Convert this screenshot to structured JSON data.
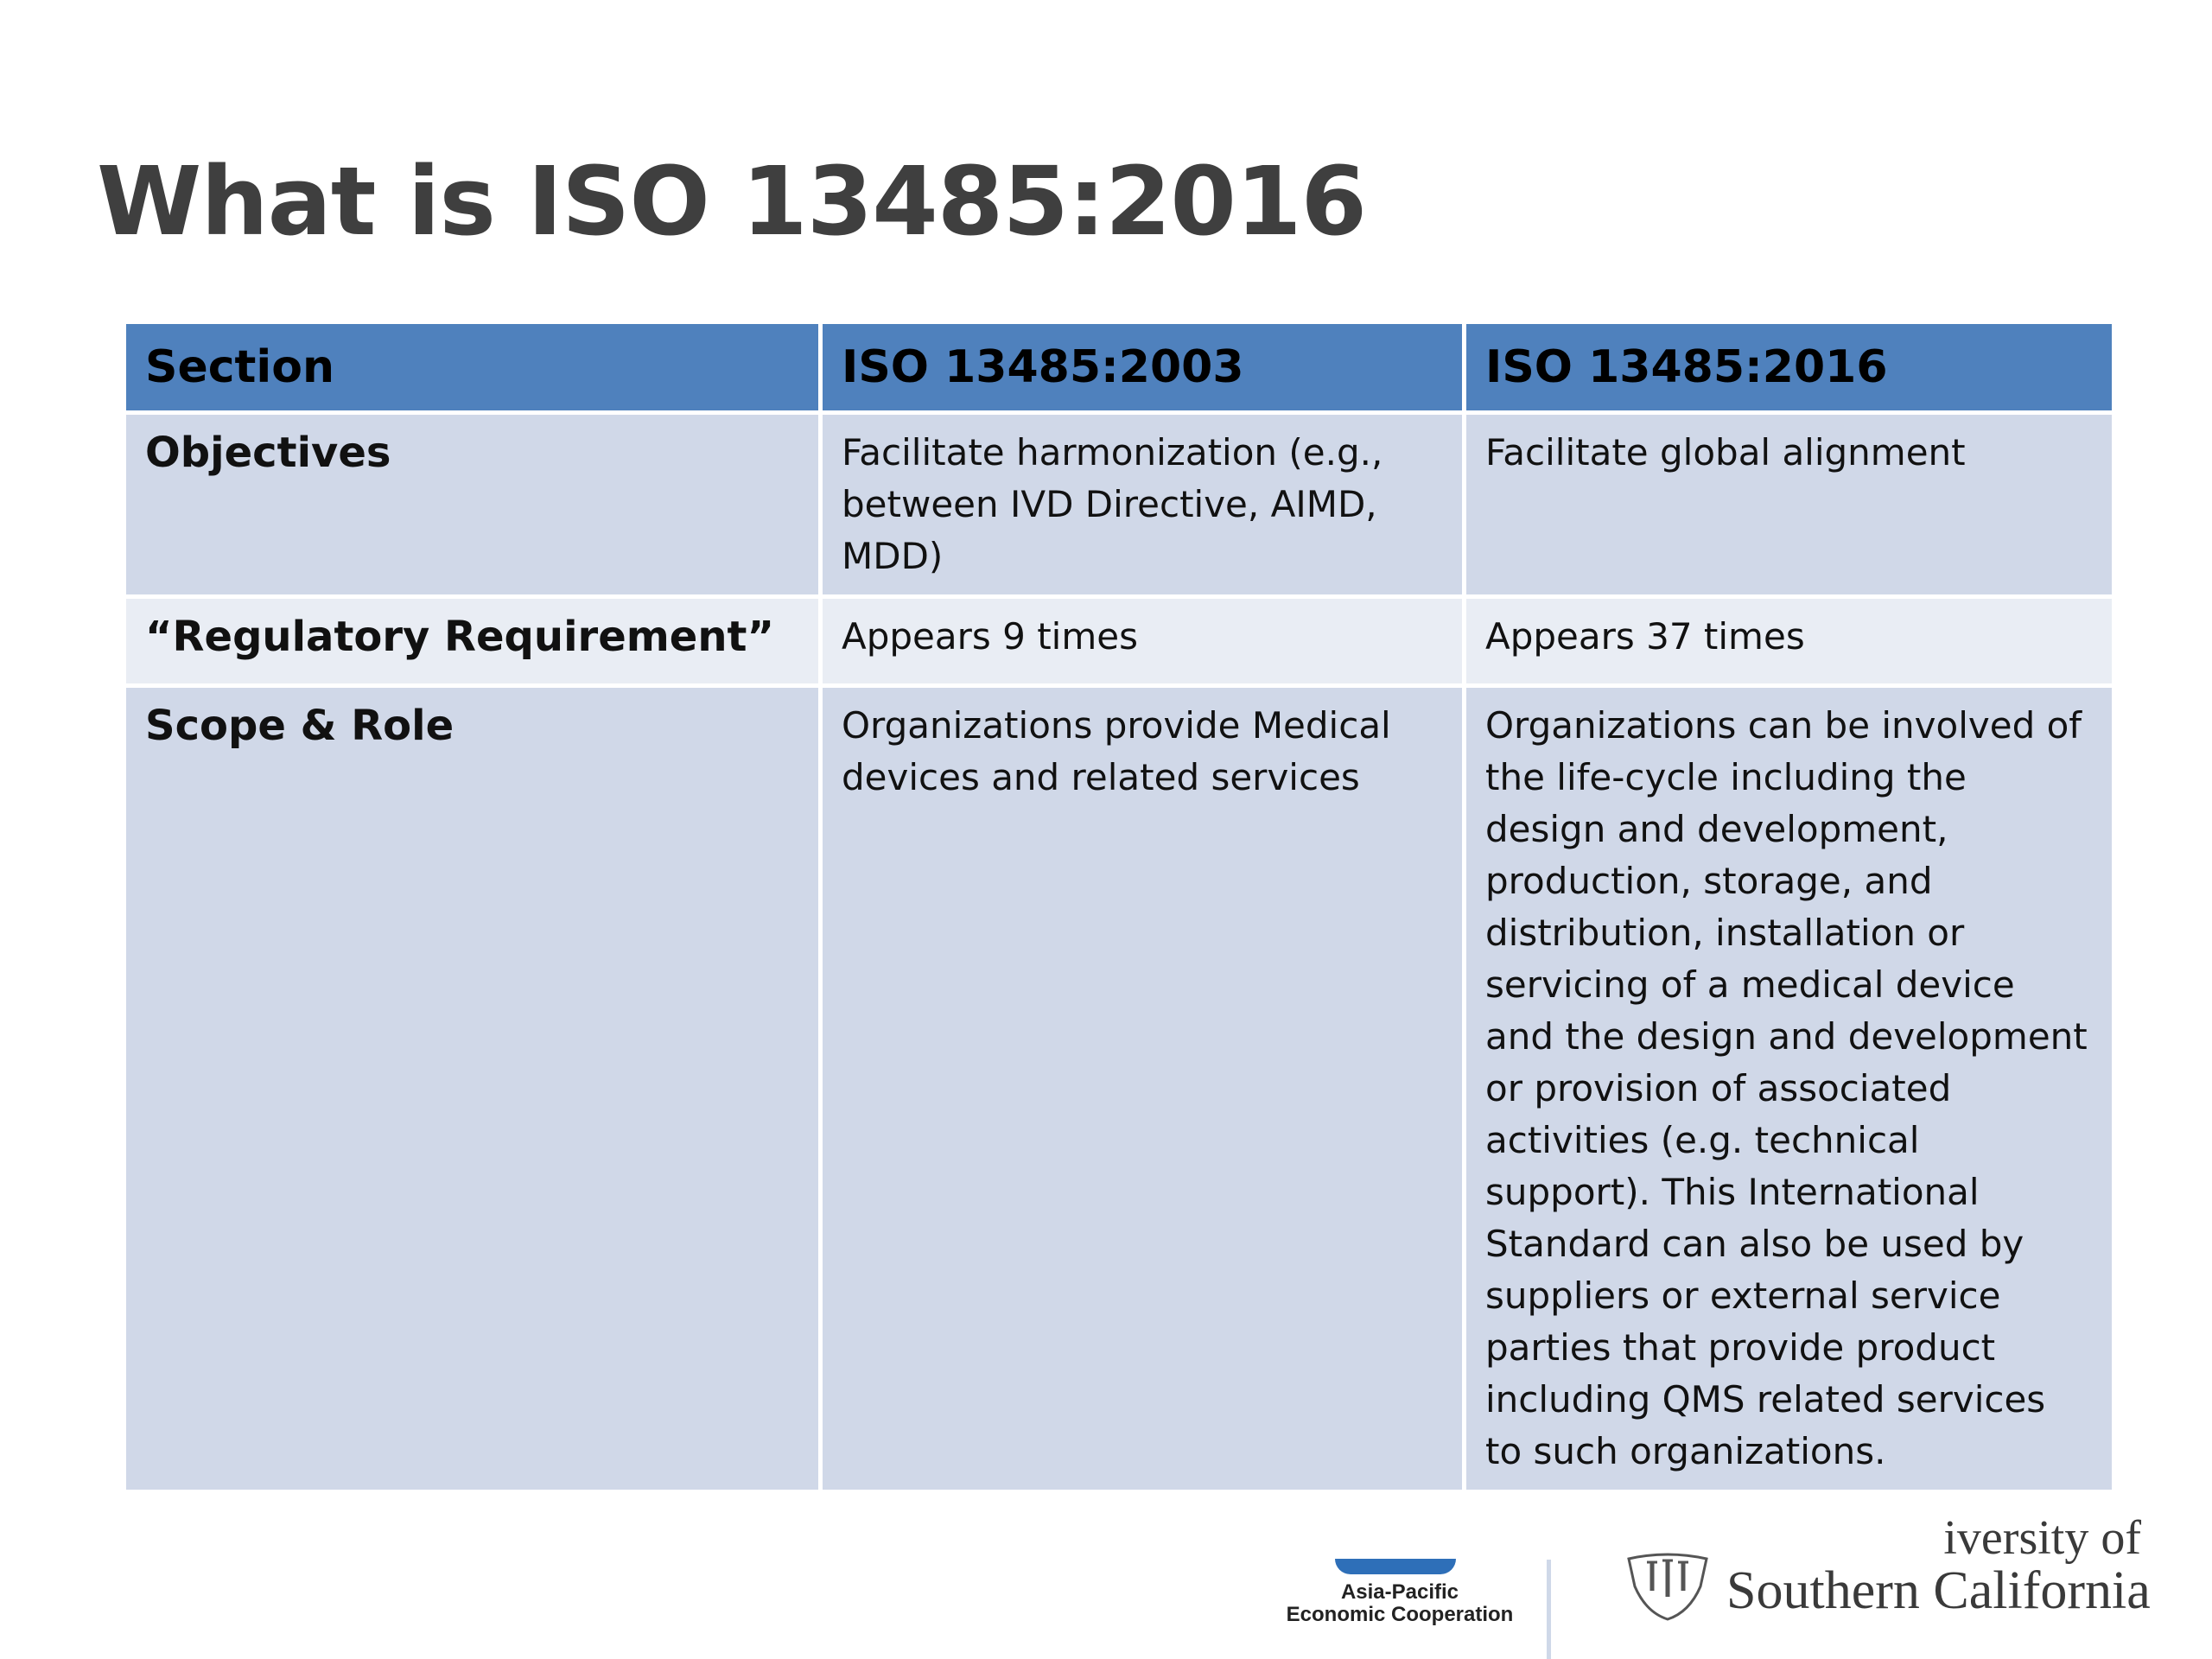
{
  "slide": {
    "title": "What is ISO 13485:2016"
  },
  "table": {
    "headers": [
      "Section",
      "ISO 13485:2003",
      "ISO 13485:2016"
    ],
    "rows": [
      {
        "section": "Objectives",
        "iso2003": "Facilitate harmonization (e.g., between IVD Directive, AIMD, MDD)",
        "iso2016": "Facilitate global alignment"
      },
      {
        "section": "“Regulatory Requirement”",
        "iso2003": "Appears 9 times",
        "iso2016": "Appears 37 times"
      },
      {
        "section": "Scope & Role",
        "iso2003": "Organizations provide Medical devices and related services",
        "iso2016": "Organizations can be involved of the life-cycle including the design and development, production, storage, and distribution, installation or servicing of a medical device and the design and development or provision of associated activities (e.g. technical support).  This International Standard can also be used by suppliers or external service parties that provide product including QMS related services to such organizations."
      }
    ]
  },
  "footer": {
    "apec_line1": "Asia-Pacific",
    "apec_line2": "Economic Cooperation",
    "usc_line1": "iversity of",
    "usc_line2": "Southern California"
  },
  "colors": {
    "header_fill": "#4f81bd",
    "row_fill_dark": "#d0d8e8",
    "row_fill_light": "#e9edf4",
    "title_text": "#3f3f3f"
  }
}
